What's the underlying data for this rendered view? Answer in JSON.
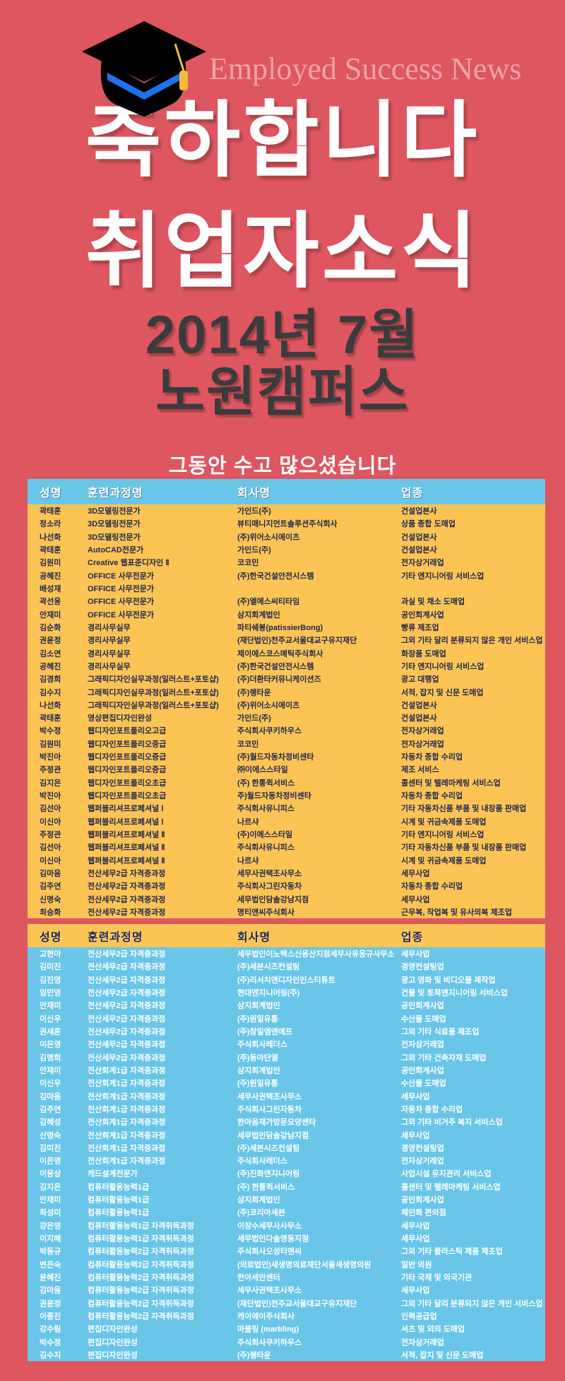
{
  "poster": {
    "brand": "Employed Success News",
    "headline_line1": "축하합니다",
    "headline_line2": "취업자소식",
    "period_line1": "2014년 7월",
    "period_line2": "노원캠퍼스",
    "tagline": "그동안 수고 많으셨습니다"
  },
  "icons": {
    "graduation_cap": "graduation-cap-icon"
  },
  "colors": {
    "background_red": "#de5660",
    "table_blue": "#6ac6e9",
    "table_yellow": "#fbc455",
    "dark_text": "#232850",
    "title_dark": "#3b3b3d",
    "brand_pink": "#f0a3a8",
    "cap_band_blue": "#1b74ee",
    "tassel_gold": "#f6b93c"
  },
  "tables": [
    {
      "name": "employment-list-1",
      "columns": [
        {
          "key": "name",
          "label": "성명"
        },
        {
          "key": "course",
          "label": "훈련과정명"
        },
        {
          "key": "company",
          "label": "회사명"
        },
        {
          "key": "industry",
          "label": "업종"
        }
      ],
      "rows": [
        [
          "곽태훈",
          "3D모델링전문가",
          "가인드(주)",
          "건설업본사"
        ],
        [
          "정소라",
          "3D모델링전문가",
          "뷰티매니지먼트솔루션주식회사",
          "상품 종합 도매업"
        ],
        [
          "나선화",
          "3D모델링전문가",
          "(주)위어소시에이츠",
          "건설업본사"
        ],
        [
          "곽태훈",
          "AutoCAD전문가",
          "가인드(주)",
          "건설업본사"
        ],
        [
          "김원미",
          "Creative 웹표준디자인 Ⅱ",
          "코코민",
          "전자상거래업"
        ],
        [
          "공혜진",
          "OFFICE 사무전문가",
          "(주)한국건설안전시스템",
          "기타 엔지니어링 서비스업"
        ],
        [
          "배성재",
          "OFFICE 사무전문가",
          "",
          ""
        ],
        [
          "곽선웅",
          "OFFICE 사무전문가",
          "(주)엘에스씨티타임",
          "과실 및 채소 도매업"
        ],
        [
          "안재미",
          "OFFICE 사무전문가",
          "삼지회계법인",
          "공인회계사업"
        ],
        [
          "김순화",
          "경리사무실무",
          "파티쉐봉(patissierBong)",
          "빵류 제조업"
        ],
        [
          "권윤정",
          "경리사무실무",
          "(재단법인)천주교서울대교구유지재단",
          "그외 기타 달리 분류되지 않은 개인 서비스업"
        ],
        [
          "김소연",
          "경리사무실무",
          "제이에스코스메틱주식회사",
          "화장품 도매업"
        ],
        [
          "공혜진",
          "경리사무실무",
          "(주)한국건설안전시스템",
          "기타 엔지니어링 서비스업"
        ],
        [
          "김경희",
          "그래픽디자인실무과정(일러스트+포토샵)",
          "(주)더환타커뮤니케이션즈",
          "광고 대행업"
        ],
        [
          "김수지",
          "그래픽디자인실무과정(일러스트+포토샵)",
          "(주)랭타운",
          "서적, 잡지 및 신문 도매업"
        ],
        [
          "나선화",
          "그래픽디자인실무과정(일러스트+포토샵)",
          "(주)위어소시에이츠",
          "건설업본사"
        ],
        [
          "곽태훈",
          "영상편집디자인완성",
          "가인드(주)",
          "건설업본사"
        ],
        [
          "박수정",
          "웹디자인포트폴리오고급",
          "주식회사쿠키하우스",
          "전자상거래업"
        ],
        [
          "김원미",
          "웹디자인포트폴리오중급",
          "코코민",
          "전자상거래업"
        ],
        [
          "박진아",
          "웹디자인포트폴리오중급",
          "(주)월드자동차정비센타",
          "자동차 종합 수리업"
        ],
        [
          "주정관",
          "웹디자인포트폴리오중급",
          "㈜이에스스타일",
          "제조 서비스"
        ],
        [
          "김지은",
          "웹디자인포트폴리오초급",
          "(주) 한통퀵서비스",
          "콜센터 및 텔레마케팅 서비스업"
        ],
        [
          "박진아",
          "웹디자인포트폴리오초급",
          "주)월드자동차정비센타",
          "자동차 종합 수리업"
        ],
        [
          "김선아",
          "웹퍼블리셔프로페셔널 Ⅰ",
          "주식회사유니피스",
          "기타 자동차신품 부품 및 내장품 판매업"
        ],
        [
          "이신아",
          "웹퍼블리셔프로페셔널 Ⅰ",
          "나르샤",
          "시계 및 귀금속제품 도매업"
        ],
        [
          "주정관",
          "웹퍼블리셔프로페셔널 Ⅱ",
          "(주)이에스스타일",
          "기타 엔지니어링 서비스업"
        ],
        [
          "김선아",
          "웹퍼블리셔프로페셔널 Ⅱ",
          "주식회사유니피스",
          "기타 자동차신품 부품 및 내장품 판매업"
        ],
        [
          "이신아",
          "웹퍼블리셔프로페셔널 Ⅱ",
          "나르샤",
          "시계 및 귀금속제품 도매업"
        ],
        [
          "김마음",
          "전산세무2급 자격증과정",
          "세무사권택조사무소",
          "세무사업"
        ],
        [
          "김주연",
          "전산세무2급 자격증과정",
          "주식회사그린자동차",
          "자동차 종합 수리업"
        ],
        [
          "신명숙",
          "전산세무2급 자격증과정",
          "세무법인담솔강남지점",
          "세무사업"
        ],
        [
          "최승화",
          "전산세무2급 자격증과정",
          "명티앤씨주식회사",
          "근무복, 작업복 및 유사의복 제조업"
        ]
      ]
    },
    {
      "name": "employment-list-2",
      "columns": [
        {
          "key": "name",
          "label": "성명"
        },
        {
          "key": "course",
          "label": "훈련과정명"
        },
        {
          "key": "company",
          "label": "회사명"
        },
        {
          "key": "industry",
          "label": "업종"
        }
      ],
      "rows": [
        [
          "고현아",
          "전산세무2급 자격증과정",
          "세무법인이노택스신용산지점세무사유웅규사무소",
          "세무사업"
        ],
        [
          "김미진",
          "전산세무2급 자격증과정",
          "(주)세븐시즈컨설팅",
          "경영컨설팅업"
        ],
        [
          "김진영",
          "전산세무2급 자격증과정",
          "(주)리서치앤디자인인스티튜트",
          "광고 영화 및 비디오물 제작업"
        ],
        [
          "임민영",
          "전산세무2급 자격증과정",
          "현대엔지니어링(주)",
          "건물 및 토목엔지니어링 서비스업"
        ],
        [
          "안재미",
          "전산세무2급 자격증과정",
          "삼지회계법인",
          "공인회계사업"
        ],
        [
          "이신우",
          "전산세무2급 자격증과정",
          "(주)원일유통",
          "수산물 도매업"
        ],
        [
          "권세훈",
          "전산세무2급 자격증과정",
          "(주)창일엠앤에프",
          "그외 기타 식료품 제조업"
        ],
        [
          "이은영",
          "전산세무2급 자격증과정",
          "주식회사레더스",
          "전자상거래업"
        ],
        [
          "김명희",
          "전산세무2급 자격증과정",
          "(주)동아단열",
          "그외 기타 건축자재 도매업"
        ],
        [
          "안재미",
          "전산회계1급 자격증과정",
          "삼지회계법인",
          "공인회계사업"
        ],
        [
          "이신우",
          "전산회계1급 자격증과정",
          "(주)원일유통",
          "수산물 도매업"
        ],
        [
          "김마음",
          "전산회계1급 자격증과정",
          "세무사권택조사무소",
          "세무사업"
        ],
        [
          "김주연",
          "전산회계1급 자격증과정",
          "주식회사그린자동차",
          "자동차 종합 수리업"
        ],
        [
          "김혜성",
          "전산회계1급 자격증과정",
          "한마음재가방문요양센타",
          "그외 기타 비거주 복지 서비스업"
        ],
        [
          "신명숙",
          "전산회계1급 자격증과정",
          "세무법인담솔강남지점",
          "세무사업"
        ],
        [
          "김미진",
          "전산회계1급 자격증과정",
          "(주)세븐시즈컨설팅",
          "경영컨설팅업"
        ],
        [
          "이은영",
          "전산회계1급 자격증과정",
          "주식회사레더스",
          "전자상거래업"
        ],
        [
          "이용상",
          "캐드설계전문가",
          "(주)진화엔지니어링",
          "사업시설 유지관리 서비스업"
        ],
        [
          "김지은",
          "컴퓨터활용능력1급",
          "(주) 한통퀵서비스",
          "콜센터 및 텔레마케팅 서비스업"
        ],
        [
          "안재미",
          "컴퓨터활용능력1급",
          "삼지회계법인",
          "공인회계사업"
        ],
        [
          "최성미",
          "컴퓨터활용능력1급",
          "(주)코리아세븐",
          "체인화 편의점"
        ],
        [
          "강은영",
          "컴퓨터활용능력1급 자격취득과정",
          "이장수세무사사무소",
          "세무사업"
        ],
        [
          "이지해",
          "컴퓨터활용능력1급 자격취득과정",
          "세무법인다솔영동지점",
          "세무사업"
        ],
        [
          "박동규",
          "컴퓨터활용능력2급 자격취득과정",
          "주식회사오성티앤씨",
          "그외 기타 플라스틱 제품 제조업"
        ],
        [
          "변은숙",
          "컴퓨터활용능력2급 자격취득과정",
          "(의료법인)새생명의료재단서울새생명의원",
          "일반 의원"
        ],
        [
          "윤혜진",
          "컴퓨터활용능력2급 자격취득과정",
          "한아세안센터",
          "기타 국제 및 외국기관"
        ],
        [
          "김마음",
          "컴퓨터활용능력2급 자격취득과정",
          "세무사권택조사무소",
          "세무사업"
        ],
        [
          "권윤정",
          "컴퓨터활용능력2급 자격취득과정",
          "(재단법인)천주교서울대교구유지재단",
          "그외 기타 달리 분류되지 않은 개인 서비스업"
        ],
        [
          "이종진",
          "컴퓨터활용능력2급 자격취득과정",
          "케이에이주식회사",
          "인력공급업"
        ],
        [
          "강수림",
          "편집디자인완성",
          "마블링 (marbling)",
          "셔츠 및 외의 도매업"
        ],
        [
          "박수정",
          "편집디자인완성",
          "주식회사쿠키하우스",
          "전자상거래업"
        ],
        [
          "김수지",
          "편집디자인완성",
          "(주)랭타운",
          "서적, 잡지 및 신문 도매업"
        ]
      ]
    }
  ]
}
